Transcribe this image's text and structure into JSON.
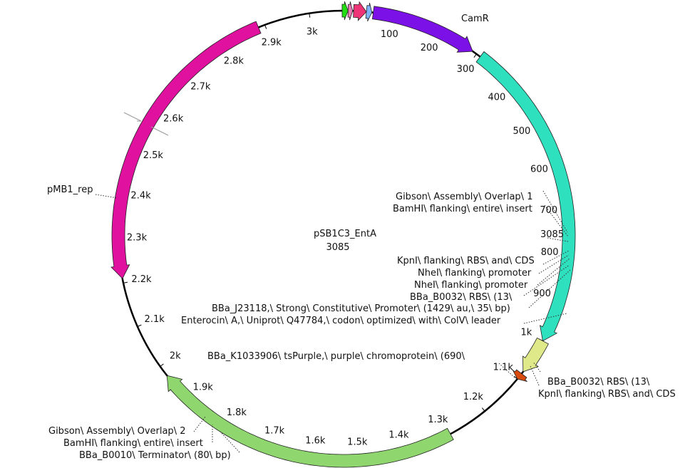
{
  "plasmid": {
    "name": "pSB1C3_EntA",
    "length_label": "3085",
    "length": 3085
  },
  "ticks": [
    {
      "pos": 3000,
      "label": "3k"
    },
    {
      "pos": 2900,
      "label": "2.9k"
    },
    {
      "pos": 2800,
      "label": "2.8k"
    },
    {
      "pos": 2700,
      "label": "2.7k"
    },
    {
      "pos": 2600,
      "label": "2.6k"
    },
    {
      "pos": 2500,
      "label": "2.5k"
    },
    {
      "pos": 2400,
      "label": "2.4k"
    },
    {
      "pos": 2300,
      "label": "2.3k"
    },
    {
      "pos": 2200,
      "label": "2.2k"
    },
    {
      "pos": 2100,
      "label": "2.1k"
    },
    {
      "pos": 2000,
      "label": "2k"
    },
    {
      "pos": 1900,
      "label": "1.9k"
    },
    {
      "pos": 1800,
      "label": "1.8k"
    },
    {
      "pos": 1700,
      "label": "1.7k"
    },
    {
      "pos": 1600,
      "label": "1.6k"
    },
    {
      "pos": 1500,
      "label": "1.5k"
    },
    {
      "pos": 1400,
      "label": "1.4k"
    },
    {
      "pos": 1300,
      "label": "1.3k"
    },
    {
      "pos": 1200,
      "label": "1.2k"
    },
    {
      "pos": 1100,
      "label": "1.1k"
    },
    {
      "pos": 1000,
      "label": "1k"
    },
    {
      "pos": 900,
      "label": "900"
    },
    {
      "pos": 800,
      "label": "800"
    },
    {
      "pos": 700,
      "label": "700"
    },
    {
      "pos": 600,
      "label": "600"
    },
    {
      "pos": 500,
      "label": "500"
    },
    {
      "pos": 400,
      "label": "400"
    },
    {
      "pos": 300,
      "label": "300"
    },
    {
      "pos": 200,
      "label": "200"
    },
    {
      "pos": 100,
      "label": "100"
    }
  ],
  "features": [
    {
      "name": "CamR",
      "start": 2885,
      "end": 2210,
      "color": "#e0119e"
    },
    {
      "name": "pMB1_rep",
      "start": 1290,
      "end": 1975,
      "color": "#8fd66f"
    },
    {
      "name": "Gibson\\ Assembly\\ Overlap\\ 1",
      "start": 3072,
      "end": 3085,
      "color": "#22dd11"
    },
    {
      "name": "BamHI\\ flanking\\ entire\\ insert",
      "start": 0,
      "end": 10,
      "color": "#e97ab5"
    },
    {
      "name": "KpnI\\ flanking\\ RBS\\ and\\ CDS",
      "start": 12,
      "end": 40,
      "color": "#ee3377"
    },
    {
      "name": "BBa_B0032\\ RBS\\ (13\\",
      "start": 40,
      "end": 52,
      "color": "#7fb3ff"
    },
    {
      "name": "Enterocin\\ A,\\ Uniprot\\ Q47784,\\ codon\\ optimized\\ with\\ ColV\\ leader",
      "start": 55,
      "end": 290,
      "color": "#7b11e6"
    },
    {
      "name": "BBa_K1033906\\ tsPurple,\\ purple\\ chromoprotein\\ (690\\",
      "start": 310,
      "end": 1000,
      "color": "#2fe0be"
    },
    {
      "name": "BBa_B0010\\ Terminator\\ (80\\ bp)",
      "start": 1000,
      "end": 1080,
      "color": "#dfe98a"
    },
    {
      "name": "Gibson\\ Assembly\\ Overlap\\ 2",
      "start": 1085,
      "end": 1100,
      "color": "#d94b0c"
    }
  ],
  "labels": {
    "camr": "CamR",
    "pmb1": "pMB1_rep",
    "gibson1": "Gibson\\ Assembly\\ Overlap\\ 1",
    "bamhi_top": "BamHI\\ flanking\\ entire\\ insert",
    "pos3085": "3085",
    "kpni_top": "KpnI\\ flanking\\ RBS\\ and\\ CDS",
    "nhei1": "NheI\\ flanking\\ promoter",
    "nhei2": "NheI\\ flanking\\ promoter",
    "b0032_top": "BBa_B0032\\ RBS\\ (13\\",
    "j23118": "BBa_J23118,\\ Strong\\ Constitutive\\ Promoter\\ (1429\\ au,\\ 35\\ bp)",
    "entA": "Enterocin\\ A,\\ Uniprot\\ Q47784,\\ codon\\ optimized\\ with\\ ColV\\ leader",
    "tspurple": "BBa_K1033906\\ tsPurple,\\ purple\\ chromoprotein\\ (690\\",
    "b0032_right": "BBa_B0032\\ RBS\\ (13\\",
    "kpni_right": "KpnI\\ flanking\\ RBS\\ and\\ CDS",
    "gibson2": "Gibson\\ Assembly\\ Overlap\\ 2",
    "bamhi_bottom": "BamHI\\ flanking\\ entire\\ insert",
    "b0010": "BBa_B0010\\ Terminator\\ (80\\ bp)"
  }
}
